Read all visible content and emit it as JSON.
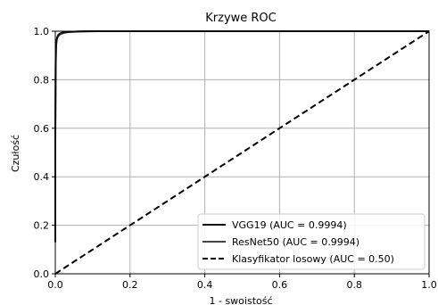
{
  "chart_data": {
    "type": "line",
    "title": "Krzywe ROC",
    "xlabel": "1 - swoistość",
    "ylabel": "Czułość",
    "xlim": [
      0,
      1
    ],
    "ylim": [
      0,
      1
    ],
    "xticks": [
      "0.0",
      "0.2",
      "0.4",
      "0.6",
      "0.8",
      "1.0"
    ],
    "yticks": [
      "0.0",
      "0.2",
      "0.4",
      "0.6",
      "0.8",
      "1.0"
    ],
    "grid": true,
    "legend_position": "bottom-right",
    "series": [
      {
        "name": "VGG19 (AUC = 0.9994)",
        "color": "#111111",
        "style": "solid",
        "x": [
          0.0,
          0.0,
          0.001,
          0.002,
          0.003,
          0.005,
          0.008,
          0.012,
          0.02,
          0.035,
          0.06,
          0.1,
          0.2,
          0.4,
          0.6,
          0.8,
          1.0
        ],
        "y": [
          0.13,
          0.55,
          0.85,
          0.93,
          0.96,
          0.975,
          0.985,
          0.99,
          0.995,
          0.997,
          0.999,
          1.0,
          1.0,
          1.0,
          1.0,
          1.0,
          1.0
        ]
      },
      {
        "name": "ResNet50 (AUC = 0.9994)",
        "color": "#444444",
        "style": "solid",
        "x": [
          0.0,
          0.0,
          0.001,
          0.002,
          0.004,
          0.006,
          0.01,
          0.015,
          0.025,
          0.04,
          0.07,
          0.12,
          0.2,
          0.4,
          0.6,
          0.8,
          1.0
        ],
        "y": [
          0.15,
          0.6,
          0.88,
          0.94,
          0.965,
          0.975,
          0.983,
          0.989,
          0.994,
          0.997,
          0.999,
          1.0,
          1.0,
          1.0,
          1.0,
          1.0,
          1.0
        ]
      },
      {
        "name": "Klasyfikator losowy (AUC = 0.50)",
        "color": "#000000",
        "style": "dashed",
        "x": [
          0,
          1
        ],
        "y": [
          0,
          1
        ]
      }
    ]
  }
}
